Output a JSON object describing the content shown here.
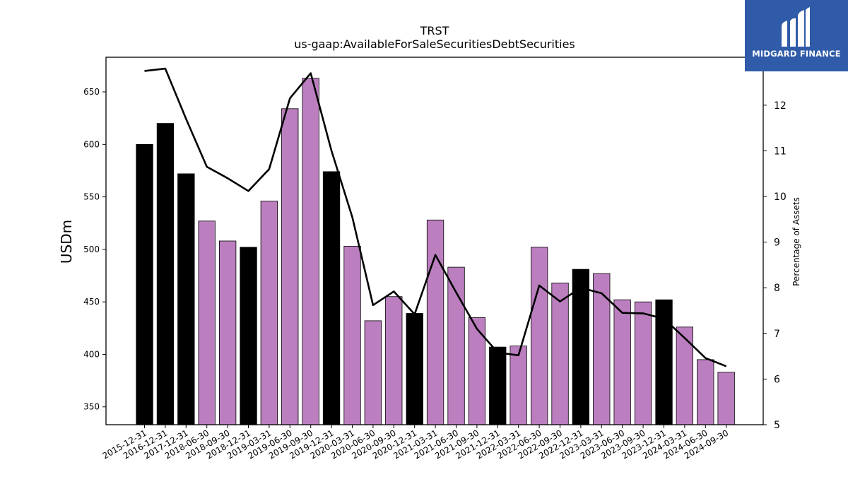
{
  "chart_data": {
    "type": "bar",
    "title": "TRST",
    "subtitle": "us-gaap:AvailableForSaleSecuritiesDebtSecurities",
    "ylabel": "USDm",
    "y2label": "Percentage of Assets",
    "ylim": [
      333,
      683
    ],
    "y2lim": [
      5,
      13.05
    ],
    "yticks": [
      350,
      400,
      450,
      500,
      550,
      600,
      650
    ],
    "y2ticks": [
      5,
      6,
      7,
      8,
      9,
      10,
      11,
      12
    ],
    "categories": [
      "2015-12-31",
      "2016-12-31",
      "2017-12-31",
      "2018-06-30",
      "2018-09-30",
      "2018-12-31",
      "2019-03-31",
      "2019-06-30",
      "2019-09-30",
      "2019-12-31",
      "2020-03-31",
      "2020-06-30",
      "2020-09-30",
      "2020-12-31",
      "2021-03-31",
      "2021-06-30",
      "2021-09-30",
      "2021-12-31",
      "2022-03-31",
      "2022-06-30",
      "2022-09-30",
      "2022-12-31",
      "2023-03-31",
      "2023-06-30",
      "2023-09-30",
      "2023-12-31",
      "2024-03-31",
      "2024-06-30",
      "2024-09-30"
    ],
    "series": [
      {
        "type": "bar",
        "values": [
          600,
          620,
          572,
          527,
          508,
          502,
          546,
          634,
          663,
          574,
          503,
          432,
          455,
          439,
          528,
          483,
          435,
          407,
          408,
          502,
          468,
          481,
          477,
          452,
          450,
          452,
          426,
          395,
          383
        ],
        "year_end": [
          true,
          true,
          true,
          false,
          false,
          true,
          false,
          false,
          false,
          true,
          false,
          false,
          false,
          true,
          false,
          false,
          false,
          true,
          false,
          false,
          false,
          true,
          false,
          false,
          false,
          true,
          false,
          false,
          false
        ]
      },
      {
        "type": "line",
        "axis": "right",
        "values": [
          12.75,
          12.8,
          11.7,
          10.65,
          10.4,
          10.12,
          10.6,
          12.15,
          12.7,
          11.0,
          9.55,
          7.62,
          7.92,
          7.42,
          8.72,
          7.9,
          7.1,
          6.58,
          6.52,
          8.05,
          7.7,
          8.0,
          7.88,
          7.45,
          7.44,
          7.32,
          6.9,
          6.46,
          6.28
        ]
      }
    ],
    "colors": {
      "year_end_bar": "#000000",
      "quarter_bar": "#bb7fbf",
      "line": "#000000"
    }
  },
  "logo": {
    "text": "MIDGARD FINANCE",
    "background": "#2f5ba8"
  }
}
